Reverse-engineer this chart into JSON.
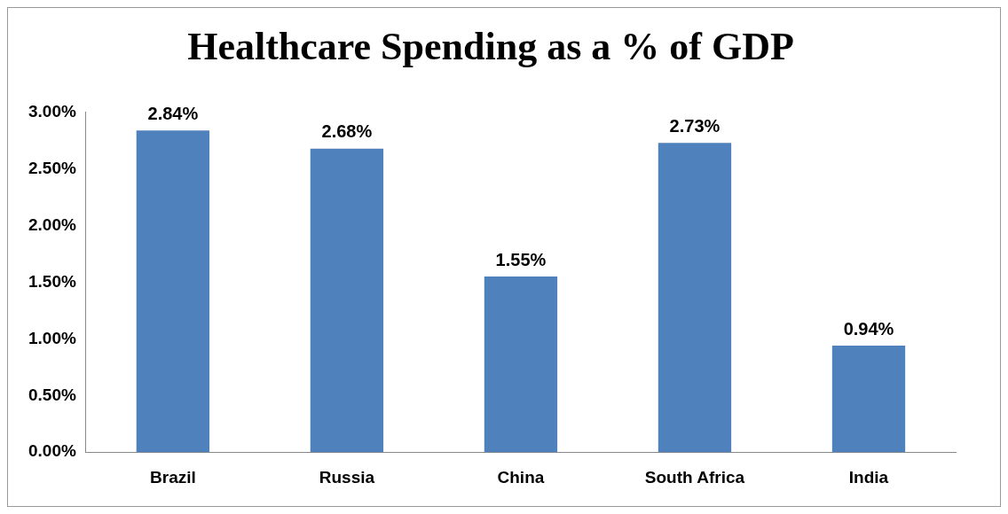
{
  "chart_data": {
    "type": "bar",
    "title": "Healthcare Spending as a % of GDP",
    "categories": [
      "Brazil",
      "Russia",
      "China",
      "South Africa",
      "India"
    ],
    "values": [
      2.84,
      2.68,
      1.55,
      2.73,
      0.94
    ],
    "value_labels": [
      "2.84%",
      "2.68%",
      "1.55%",
      "2.73%",
      "0.94%"
    ],
    "color": "#4f81bd",
    "ylim": [
      0,
      3
    ],
    "yticks": [
      {
        "value": 0,
        "label": "0.00%"
      },
      {
        "value": 0.5,
        "label": "0.50%"
      },
      {
        "value": 1,
        "label": "1.00%"
      },
      {
        "value": 1.5,
        "label": "1.50%"
      },
      {
        "value": 2,
        "label": "2.00%"
      },
      {
        "value": 2.5,
        "label": "2.50%"
      },
      {
        "value": 3,
        "label": "3.00%"
      }
    ],
    "grid": false,
    "legend": false
  }
}
